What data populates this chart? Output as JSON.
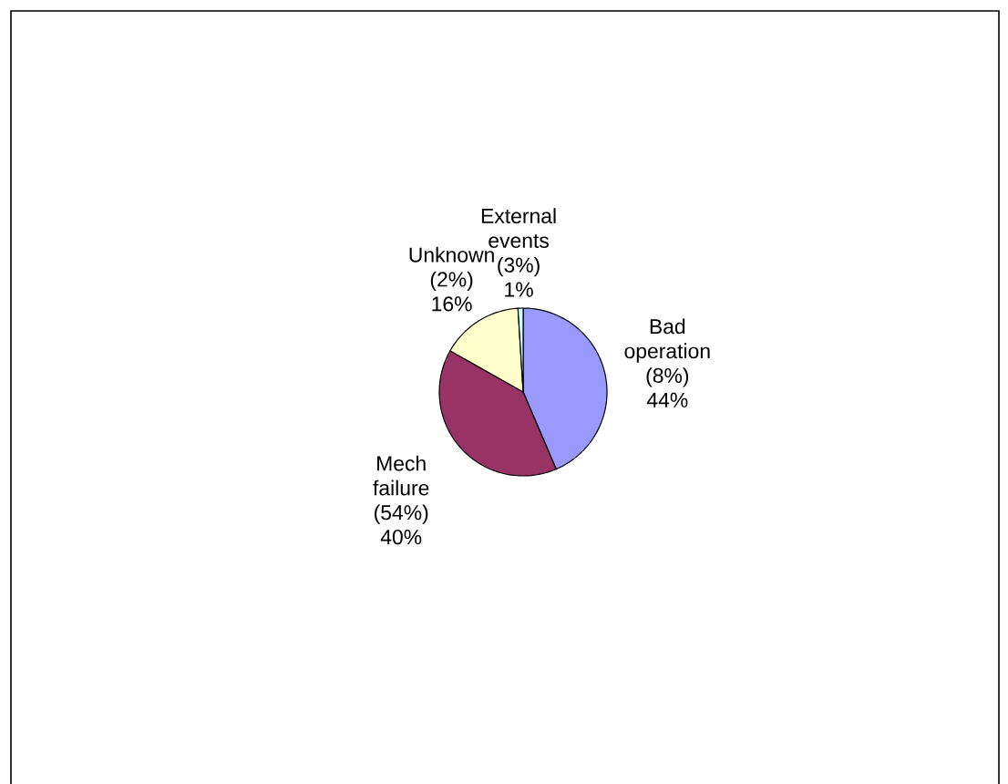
{
  "chart_data": {
    "type": "pie",
    "categories": [
      "Bad operation (8%)",
      "Mech failure (54%)",
      "Unknown (2%)",
      "External events (3%)"
    ],
    "values": [
      44,
      40,
      16,
      1
    ],
    "value_labels": [
      "44%",
      "40%",
      "16%",
      "1%"
    ],
    "colors": [
      "#9999ff",
      "#993366",
      "#ffffcc",
      "#ccffff"
    ]
  }
}
